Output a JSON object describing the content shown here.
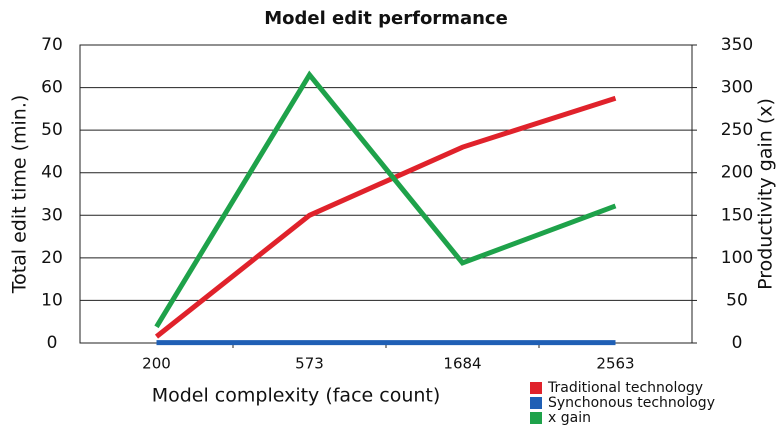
{
  "chart_data": {
    "type": "line",
    "title": "Model edit performance",
    "xlabel": "Model complexity (face count)",
    "ylabel": "Total edit time (min.)",
    "y2label": "Productivity gain (x)",
    "categories": [
      "200",
      "573",
      "1684",
      "2563"
    ],
    "series": [
      {
        "name": "Traditional technology",
        "color": "#e0222b",
        "values": [
          1.5,
          30,
          46,
          57.5
        ]
      },
      {
        "name": "Synchonous technology",
        "color": "#1f5fb5",
        "values": [
          0.1,
          0.1,
          0.1,
          0.1
        ]
      },
      {
        "name": "x gain",
        "color": "#1ea24a",
        "axis": "y2",
        "values": [
          19,
          315,
          94,
          161
        ]
      }
    ],
    "ylim": [
      0,
      70
    ],
    "yticks": [
      0,
      10,
      20,
      30,
      40,
      50,
      60,
      70
    ],
    "y2lim": [
      0,
      350
    ],
    "y2ticks": [
      0,
      50,
      100,
      150,
      200,
      250,
      300,
      350
    ],
    "grid": true,
    "legend": "lower right"
  }
}
